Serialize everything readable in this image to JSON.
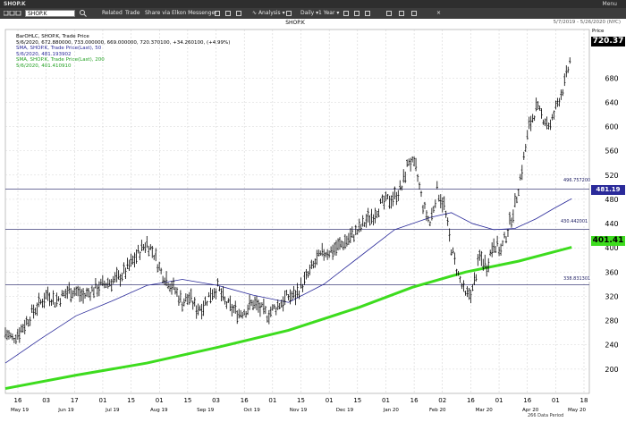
{
  "window": {
    "title": "SHOP.K",
    "menu": "Menu"
  },
  "toolbar": {
    "symbol": "SHOP.K",
    "items": [
      "Related",
      "Trade",
      "Share via Elkon Messenger"
    ],
    "analysis": "Analysis",
    "interval": "Daily",
    "range": "1 Year"
  },
  "chart": {
    "title": "SHOP.K",
    "date_range": "5/7/2019 - 5/26/2020 (NYC)",
    "price_label": "Price",
    "legend": [
      "BarOHLC, SHOP.K, Trade Price",
      "5/6/2020, 672.880000, 733.000000, 669.000000, 720.370100, +34.260100, (+4.99%)",
      "SMA, SHOP.K, Trade Price(Last), 50",
      "5/6/2020, 481.193902",
      "SMA, SHOP.K, Trade Price(Last), 200",
      "5/6/2020, 401.410910"
    ],
    "last_price": "720.37",
    "sma50_tag": "481.19",
    "sma200_tag": "401.41",
    "hlines": [
      "496.757200",
      "430.442001",
      "338.831301"
    ],
    "footer": "266 Data Period"
  },
  "chart_data": {
    "type": "line",
    "title": "SHOP.K",
    "ylim": [
      160,
      760
    ],
    "y_ticks": [
      200,
      240,
      280,
      320,
      360,
      400,
      440,
      480,
      520,
      560,
      600,
      640,
      680
    ],
    "x_day_ticks": [
      "16",
      "03",
      "17",
      "01",
      "15",
      "01",
      "15",
      "03",
      "16",
      "01",
      "15",
      "01",
      "15",
      "01",
      "16",
      "02",
      "16",
      "01",
      "16",
      "01",
      "18"
    ],
    "x_month_labels": [
      "May 19",
      "Jun 19",
      "Jul 19",
      "Aug 19",
      "Sep 19",
      "Oct 19",
      "Nov 19",
      "Dec 19",
      "Jan 20",
      "Feb 20",
      "Mar 20",
      "Apr 20",
      "May 20"
    ],
    "price_series": [
      {
        "x": 0,
        "y": 260
      },
      {
        "x": 4,
        "y": 250
      },
      {
        "x": 8,
        "y": 262
      },
      {
        "x": 12,
        "y": 278
      },
      {
        "x": 16,
        "y": 296
      },
      {
        "x": 20,
        "y": 310
      },
      {
        "x": 24,
        "y": 325
      },
      {
        "x": 28,
        "y": 312
      },
      {
        "x": 32,
        "y": 320
      },
      {
        "x": 36,
        "y": 330
      },
      {
        "x": 40,
        "y": 328
      },
      {
        "x": 44,
        "y": 320
      },
      {
        "x": 48,
        "y": 328
      },
      {
        "x": 52,
        "y": 335
      },
      {
        "x": 56,
        "y": 340
      },
      {
        "x": 60,
        "y": 345
      },
      {
        "x": 64,
        "y": 350
      },
      {
        "x": 68,
        "y": 362
      },
      {
        "x": 72,
        "y": 378
      },
      {
        "x": 76,
        "y": 395
      },
      {
        "x": 80,
        "y": 408
      },
      {
        "x": 84,
        "y": 390
      },
      {
        "x": 88,
        "y": 360
      },
      {
        "x": 92,
        "y": 345
      },
      {
        "x": 96,
        "y": 330
      },
      {
        "x": 100,
        "y": 310
      },
      {
        "x": 104,
        "y": 318
      },
      {
        "x": 108,
        "y": 300
      },
      {
        "x": 112,
        "y": 305
      },
      {
        "x": 116,
        "y": 325
      },
      {
        "x": 120,
        "y": 335
      },
      {
        "x": 124,
        "y": 310
      },
      {
        "x": 128,
        "y": 300
      },
      {
        "x": 132,
        "y": 292
      },
      {
        "x": 136,
        "y": 298
      },
      {
        "x": 140,
        "y": 310
      },
      {
        "x": 144,
        "y": 300
      },
      {
        "x": 148,
        "y": 290
      },
      {
        "x": 152,
        "y": 300
      },
      {
        "x": 156,
        "y": 310
      },
      {
        "x": 160,
        "y": 320
      },
      {
        "x": 164,
        "y": 322
      },
      {
        "x": 168,
        "y": 340
      },
      {
        "x": 172,
        "y": 360
      },
      {
        "x": 176,
        "y": 380
      },
      {
        "x": 180,
        "y": 392
      },
      {
        "x": 184,
        "y": 395
      },
      {
        "x": 188,
        "y": 402
      },
      {
        "x": 192,
        "y": 410
      },
      {
        "x": 196,
        "y": 420
      },
      {
        "x": 200,
        "y": 430
      },
      {
        "x": 204,
        "y": 445
      },
      {
        "x": 208,
        "y": 455
      },
      {
        "x": 212,
        "y": 470
      },
      {
        "x": 216,
        "y": 478
      },
      {
        "x": 220,
        "y": 485
      },
      {
        "x": 224,
        "y": 500
      },
      {
        "x": 228,
        "y": 545
      },
      {
        "x": 232,
        "y": 530
      },
      {
        "x": 236,
        "y": 470
      },
      {
        "x": 240,
        "y": 440
      },
      {
        "x": 244,
        "y": 495
      },
      {
        "x": 248,
        "y": 470
      },
      {
        "x": 252,
        "y": 400
      },
      {
        "x": 256,
        "y": 355
      },
      {
        "x": 260,
        "y": 320
      },
      {
        "x": 264,
        "y": 330
      },
      {
        "x": 268,
        "y": 385
      },
      {
        "x": 272,
        "y": 370
      },
      {
        "x": 276,
        "y": 410
      },
      {
        "x": 280,
        "y": 395
      },
      {
        "x": 284,
        "y": 430
      },
      {
        "x": 288,
        "y": 470
      },
      {
        "x": 292,
        "y": 530
      },
      {
        "x": 296,
        "y": 600
      },
      {
        "x": 300,
        "y": 630
      },
      {
        "x": 304,
        "y": 615
      },
      {
        "x": 308,
        "y": 600
      },
      {
        "x": 312,
        "y": 640
      },
      {
        "x": 316,
        "y": 670
      },
      {
        "x": 320,
        "y": 720
      }
    ],
    "series": [
      {
        "name": "SMA 50",
        "color": "#2a2a9a",
        "values": [
          {
            "x": 0,
            "y": 210
          },
          {
            "x": 20,
            "y": 250
          },
          {
            "x": 40,
            "y": 288
          },
          {
            "x": 60,
            "y": 312
          },
          {
            "x": 80,
            "y": 338
          },
          {
            "x": 100,
            "y": 348
          },
          {
            "x": 120,
            "y": 338
          },
          {
            "x": 140,
            "y": 322
          },
          {
            "x": 160,
            "y": 310
          },
          {
            "x": 180,
            "y": 340
          },
          {
            "x": 200,
            "y": 385
          },
          {
            "x": 220,
            "y": 430
          },
          {
            "x": 240,
            "y": 450
          },
          {
            "x": 252,
            "y": 458
          },
          {
            "x": 264,
            "y": 440
          },
          {
            "x": 276,
            "y": 430
          },
          {
            "x": 288,
            "y": 432
          },
          {
            "x": 300,
            "y": 448
          },
          {
            "x": 310,
            "y": 465
          },
          {
            "x": 320,
            "y": 481
          }
        ]
      },
      {
        "name": "SMA 200",
        "color": "#3ddc1e",
        "values": [
          {
            "x": 0,
            "y": 168
          },
          {
            "x": 40,
            "y": 190
          },
          {
            "x": 80,
            "y": 210
          },
          {
            "x": 120,
            "y": 236
          },
          {
            "x": 160,
            "y": 264
          },
          {
            "x": 200,
            "y": 302
          },
          {
            "x": 230,
            "y": 335
          },
          {
            "x": 260,
            "y": 360
          },
          {
            "x": 290,
            "y": 378
          },
          {
            "x": 320,
            "y": 401
          }
        ]
      }
    ]
  },
  "colors": {
    "bg": "#ffffff",
    "bars": "#000000",
    "sma50": "#2a2a9a",
    "sma200": "#3ddc1e",
    "hline": "#1a1a60"
  }
}
